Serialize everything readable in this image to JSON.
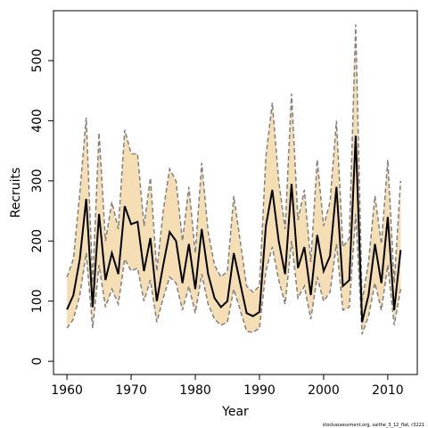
{
  "chart_data": {
    "type": "line",
    "x_label": "Year",
    "y_label": "Recruits",
    "footnote": "stockassessment.org, saithe_3_12_flat, r3221",
    "x": [
      1960,
      1961,
      1962,
      1963,
      1964,
      1965,
      1966,
      1967,
      1968,
      1969,
      1970,
      1971,
      1972,
      1973,
      1974,
      1975,
      1976,
      1977,
      1978,
      1979,
      1980,
      1981,
      1982,
      1983,
      1984,
      1985,
      1986,
      1987,
      1988,
      1989,
      1990,
      1991,
      1992,
      1993,
      1994,
      1995,
      1996,
      1997,
      1998,
      1999,
      2000,
      2001,
      2002,
      2003,
      2004,
      2005,
      2006,
      2007,
      2008,
      2009,
      2010,
      2011,
      2012
    ],
    "series": [
      {
        "color": "#000000",
        "values": [
          86,
          110,
          170,
          270,
          90,
          245,
          135,
          180,
          145,
          258,
          228,
          232,
          150,
          205,
          100,
          160,
          215,
          200,
          130,
          195,
          120,
          220,
          145,
          105,
          90,
          100,
          180,
          130,
          80,
          75,
          82,
          225,
          285,
          200,
          145,
          295,
          155,
          190,
          110,
          210,
          150,
          175,
          290,
          125,
          135,
          375,
          65,
          110,
          195,
          130,
          240,
          85,
          185
        ]
      }
    ],
    "band": {
      "color": "#f5deb3",
      "line_color": "#808080",
      "upper": [
        140,
        170,
        280,
        405,
        130,
        380,
        200,
        265,
        220,
        385,
        345,
        345,
        225,
        305,
        150,
        250,
        320,
        300,
        200,
        290,
        180,
        330,
        215,
        160,
        140,
        150,
        275,
        200,
        125,
        115,
        125,
        340,
        430,
        300,
        220,
        445,
        235,
        285,
        165,
        335,
        225,
        265,
        400,
        190,
        205,
        560,
        100,
        165,
        275,
        195,
        335,
        130,
        300
      ],
      "lower": [
        55,
        70,
        110,
        180,
        55,
        160,
        90,
        120,
        95,
        170,
        150,
        155,
        100,
        135,
        65,
        105,
        140,
        130,
        85,
        125,
        80,
        145,
        95,
        70,
        60,
        65,
        120,
        85,
        50,
        48,
        55,
        150,
        190,
        135,
        95,
        200,
        105,
        125,
        70,
        140,
        100,
        115,
        195,
        85,
        90,
        245,
        45,
        75,
        130,
        85,
        160,
        60,
        120
      ]
    },
    "xlim": [
      1957.9,
      2014.6
    ],
    "ylim": [
      -22,
      583
    ],
    "xticks": [
      1960,
      1970,
      1980,
      1990,
      2000,
      2010
    ],
    "yticks": [
      0,
      100,
      200,
      300,
      400,
      500
    ]
  }
}
